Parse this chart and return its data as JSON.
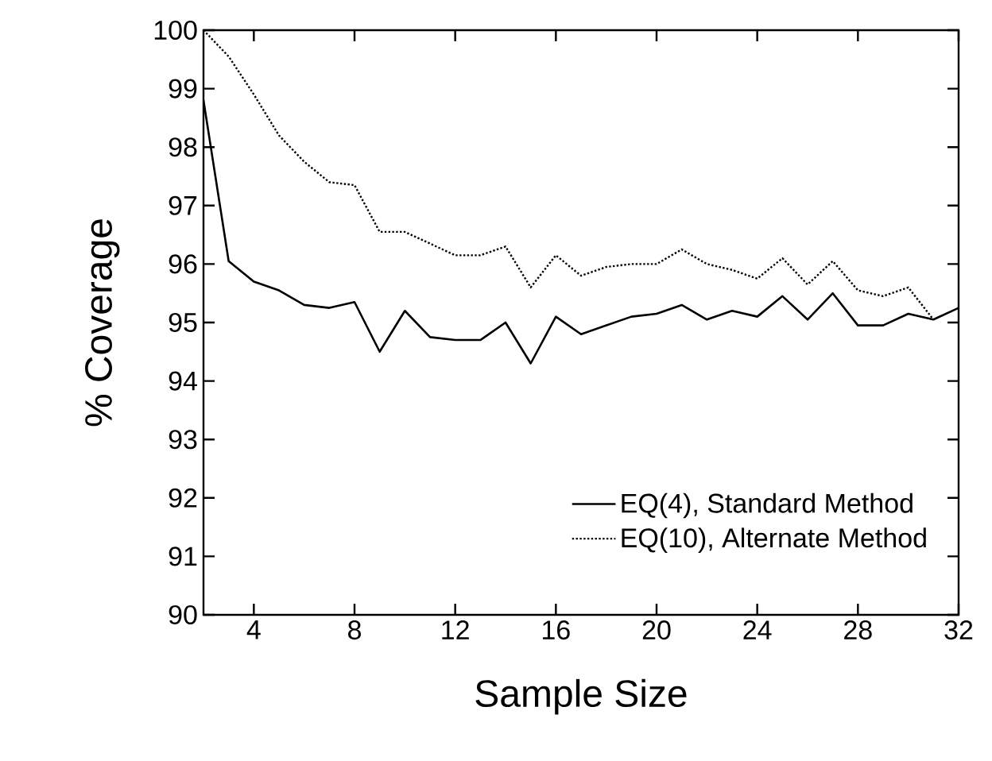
{
  "chart_data": {
    "type": "line",
    "xlabel": "Sample Size",
    "ylabel": "% Coverage",
    "xlim": [
      2,
      32
    ],
    "xticks": [
      4,
      8,
      12,
      16,
      20,
      24,
      28,
      32
    ],
    "ylim": [
      90,
      100
    ],
    "yticks": [
      90,
      91,
      92,
      93,
      94,
      95,
      96,
      97,
      98,
      99,
      100
    ],
    "grid": false,
    "legend": "bottom right",
    "marker": "none",
    "series": [
      {
        "name": "EQ(4), Standard Method",
        "color": "#000000",
        "line_style": "solid",
        "x": [
          2,
          3,
          4,
          5,
          6,
          7,
          8,
          9,
          10,
          11,
          12,
          13,
          14,
          15,
          16,
          17,
          18,
          19,
          20,
          21,
          22,
          23,
          24,
          25,
          26,
          27,
          28,
          29,
          30,
          31,
          32
        ],
        "values": [
          98.8,
          96.05,
          95.7,
          95.55,
          95.3,
          95.25,
          95.35,
          94.5,
          95.2,
          94.75,
          94.7,
          94.7,
          95.0,
          94.3,
          95.1,
          94.8,
          94.95,
          95.1,
          95.15,
          95.3,
          95.05,
          95.2,
          95.1,
          95.45,
          95.05,
          95.5,
          94.95,
          94.95,
          95.15,
          95.05,
          95.25
        ]
      },
      {
        "name": "EQ(10), Alternate Method",
        "color": "#000000",
        "line_style": "dotted",
        "x": [
          2,
          3,
          4,
          5,
          6,
          7,
          8,
          9,
          10,
          11,
          12,
          13,
          14,
          15,
          16,
          17,
          18,
          19,
          20,
          21,
          22,
          23,
          24,
          25,
          26,
          27,
          28,
          29,
          30,
          31
        ],
        "values": [
          100,
          99.55,
          98.9,
          98.2,
          97.75,
          97.4,
          97.35,
          96.55,
          96.55,
          96.35,
          96.15,
          96.15,
          96.3,
          95.6,
          96.15,
          95.8,
          95.95,
          96.0,
          96.0,
          96.25,
          96.0,
          95.9,
          95.75,
          96.1,
          95.65,
          96.05,
          95.55,
          95.45,
          95.6,
          95.05
        ]
      }
    ]
  }
}
